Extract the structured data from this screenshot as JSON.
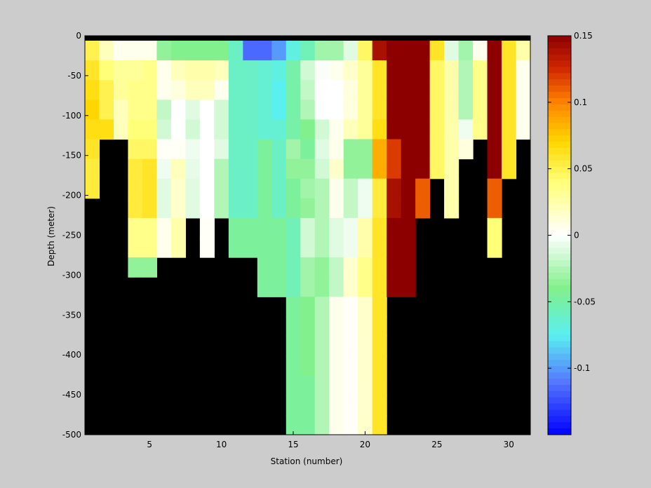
{
  "chart_data": {
    "type": "heatmap",
    "xlabel": "Station (number)",
    "ylabel": "Depth (meter)",
    "xlim": [
      1,
      31
    ],
    "ylim": [
      -500,
      0
    ],
    "x_ticks": [
      5,
      10,
      15,
      20,
      25,
      30
    ],
    "x_tick_labels": [
      "5",
      "10",
      "15",
      "20",
      "25",
      "30"
    ],
    "y_ticks": [
      0,
      -50,
      -100,
      -150,
      -200,
      -250,
      -300,
      -350,
      -400,
      -450,
      -500
    ],
    "y_tick_labels": [
      "0",
      "-50",
      "-100",
      "-150",
      "-200",
      "-250",
      "-300",
      "-350",
      "-400",
      "-450",
      "-500"
    ],
    "colorbar": {
      "range": [
        -0.15,
        0.15
      ],
      "ticks": [
        0.15,
        0.1,
        0.05,
        0,
        -0.05,
        -0.1
      ],
      "tick_labels": [
        "0.15",
        "0.1",
        "0.05",
        "0",
        "-0.05",
        "-0.1"
      ],
      "steps": 64
    },
    "missing_color": "#000000",
    "top_band_color": "#000000",
    "cell_depth": 25,
    "columns": [
      {
        "station": 1,
        "values": [
          0.05,
          0.06,
          0.065,
          0.07,
          0.065,
          0.06,
          0.055,
          0.055
        ]
      },
      {
        "station": 2,
        "values": [
          0.02,
          0.04,
          0.05,
          0.05,
          0.065
        ]
      },
      {
        "station": 3,
        "values": [
          0.005,
          0.03,
          0.03,
          0.02,
          0.02
        ]
      },
      {
        "station": 4,
        "values": [
          0.005,
          0.03,
          0.035,
          0.035,
          0.04,
          0.045,
          0.055,
          0.055,
          0.055,
          0.035,
          0.035,
          -0.035
        ]
      },
      {
        "station": 5,
        "values": [
          0.005,
          0.035,
          0.035,
          0.035,
          0.04,
          0.045,
          0.06,
          0.06,
          0.06,
          0.035,
          0.035,
          -0.035
        ]
      },
      {
        "station": 6,
        "values": [
          -0.035,
          0.005,
          0.005,
          -0.02,
          -0.015,
          0.002,
          -0.005,
          -0.01,
          -0.01,
          0.005,
          0.005
        ]
      },
      {
        "station": 7,
        "values": [
          -0.04,
          0.02,
          0.01,
          0.0,
          0.0,
          0.003,
          0.02,
          0.015,
          0.015,
          0.025,
          0.025
        ]
      },
      {
        "station": 8,
        "values": [
          -0.04,
          0.025,
          0.02,
          -0.01,
          -0.015,
          -0.005,
          -0.008,
          -0.01,
          -0.01
        ]
      },
      {
        "station": 9,
        "values": [
          -0.04,
          0.025,
          0.02,
          0.0,
          0.0,
          0.0,
          0.0,
          0.0,
          0.0,
          0.002,
          0.002
        ]
      },
      {
        "station": 10,
        "values": [
          -0.04,
          0.02,
          0.005,
          -0.015,
          -0.015,
          -0.01,
          -0.025,
          -0.025,
          -0.025
        ]
      },
      {
        "station": 11,
        "values": [
          -0.06,
          -0.06,
          -0.06,
          -0.06,
          -0.06,
          -0.06,
          -0.06,
          -0.06,
          -0.06,
          -0.045,
          -0.045
        ]
      },
      {
        "station": 12,
        "values": [
          -0.115,
          -0.06,
          -0.06,
          -0.06,
          -0.06,
          -0.06,
          -0.06,
          -0.06,
          -0.06,
          -0.045,
          -0.045
        ]
      },
      {
        "station": 13,
        "values": [
          -0.115,
          -0.065,
          -0.065,
          -0.065,
          -0.065,
          -0.045,
          -0.045,
          -0.045,
          -0.045,
          -0.045,
          -0.045,
          -0.045,
          -0.045
        ]
      },
      {
        "station": 14,
        "values": [
          -0.1,
          -0.07,
          -0.075,
          -0.075,
          -0.065,
          -0.06,
          -0.06,
          -0.06,
          -0.06,
          -0.045,
          -0.045,
          -0.045,
          -0.045
        ]
      },
      {
        "station": 15,
        "values": [
          -0.07,
          -0.05,
          -0.05,
          -0.05,
          -0.05,
          -0.03,
          -0.035,
          -0.045,
          -0.045,
          -0.055,
          -0.055,
          -0.055,
          -0.055,
          -0.045,
          -0.045,
          -0.045,
          -0.045,
          -0.045,
          -0.045,
          -0.045
        ]
      },
      {
        "station": 16,
        "values": [
          -0.055,
          -0.015,
          -0.02,
          -0.025,
          -0.04,
          -0.045,
          -0.035,
          -0.03,
          -0.035,
          -0.015,
          -0.015,
          -0.03,
          -0.03,
          -0.04,
          -0.04,
          -0.04,
          -0.04,
          -0.045,
          -0.045,
          -0.045
        ]
      },
      {
        "station": 17,
        "values": [
          -0.03,
          -0.002,
          0.0,
          0.0,
          -0.015,
          -0.01,
          -0.015,
          -0.025,
          -0.025,
          -0.025,
          -0.025,
          -0.035,
          -0.035,
          -0.025,
          -0.025,
          -0.025,
          -0.025,
          -0.025,
          -0.025,
          -0.025
        ]
      },
      {
        "station": 18,
        "values": [
          -0.03,
          0.005,
          0.0,
          0.0,
          0.005,
          0.005,
          0.015,
          0.005,
          0.005,
          -0.01,
          -0.01,
          -0.02,
          -0.02,
          0.005,
          0.005,
          0.005,
          0.005,
          0.005,
          0.005,
          0.005
        ]
      },
      {
        "station": 19,
        "values": [
          -0.01,
          0.015,
          0.01,
          0.01,
          0.02,
          -0.035,
          -0.035,
          -0.02,
          -0.02,
          -0.005,
          -0.005,
          0.015,
          0.015,
          0.002,
          0.002,
          0.002,
          0.002,
          0.002,
          0.002,
          0.002
        ]
      },
      {
        "station": 20,
        "values": [
          0.045,
          0.03,
          0.03,
          0.03,
          0.03,
          -0.035,
          -0.035,
          -0.005,
          -0.005,
          0.025,
          0.025,
          0.035,
          0.035,
          0.015,
          0.015,
          0.015,
          0.015,
          0.015,
          0.015,
          0.015
        ]
      },
      {
        "station": 21,
        "values": [
          0.14,
          0.06,
          0.06,
          0.06,
          0.065,
          0.085,
          0.085,
          0.055,
          0.055,
          0.06,
          0.06,
          0.06,
          0.06,
          0.06,
          0.06,
          0.06,
          0.06,
          0.06,
          0.06,
          0.06
        ]
      },
      {
        "station": 22,
        "values": [
          0.15,
          0.15,
          0.15,
          0.15,
          0.15,
          0.12,
          0.12,
          0.14,
          0.14,
          0.15,
          0.15,
          0.15,
          0.15
        ]
      },
      {
        "station": 23,
        "values": [
          0.15,
          0.15,
          0.15,
          0.15,
          0.15,
          0.15,
          0.15,
          0.15,
          0.15,
          0.15,
          0.15,
          0.15,
          0.15
        ]
      },
      {
        "station": 24,
        "values": [
          0.15,
          0.15,
          0.15,
          0.15,
          0.15,
          0.15,
          0.15,
          0.11,
          0.11
        ]
      },
      {
        "station": 25,
        "values": [
          0.06,
          0.045,
          0.045,
          0.045,
          0.045,
          0.045,
          0.045
        ]
      },
      {
        "station": 26,
        "values": [
          -0.01,
          0.025,
          0.025,
          0.025,
          0.025,
          0.025,
          0.025,
          0.025,
          0.025
        ]
      },
      {
        "station": 27,
        "values": [
          -0.03,
          -0.025,
          -0.025,
          -0.025,
          -0.005,
          0.01
        ]
      },
      {
        "station": 28,
        "values": [
          0.005,
          0.035,
          0.035,
          0.035,
          0.035
        ]
      },
      {
        "station": 29,
        "values": [
          0.15,
          0.15,
          0.15,
          0.15,
          0.15,
          0.15,
          0.15,
          0.11,
          0.11,
          0.04,
          0.04
        ]
      },
      {
        "station": 30,
        "values": [
          0.06,
          0.06,
          0.06,
          0.06,
          0.06,
          0.06,
          0.06
        ]
      },
      {
        "station": 31,
        "values": [
          0.025,
          0.005,
          0.005,
          0.005,
          0.005
        ]
      }
    ]
  }
}
